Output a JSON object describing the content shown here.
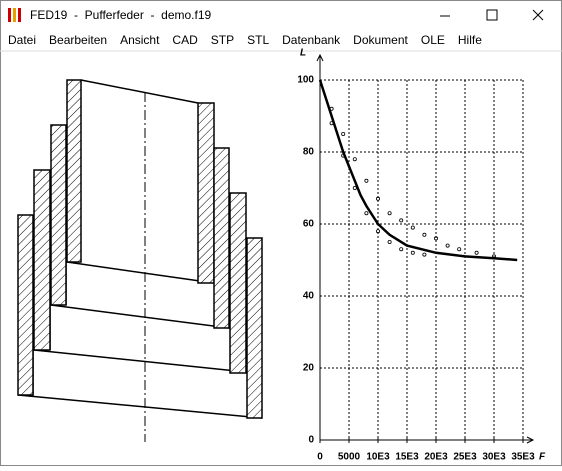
{
  "window": {
    "title": "FED19  -  Pufferfeder  -  demo.f19"
  },
  "menu": [
    "Datei",
    "Bearbeiten",
    "Ansicht",
    "CAD",
    "STP",
    "STL",
    "Datenbank",
    "Dokument",
    "OLE",
    "Hilfe"
  ],
  "chart_data": {
    "type": "line",
    "y_label": "L",
    "x_label": "F",
    "xlim": [
      0,
      35000
    ],
    "ylim": [
      0,
      100
    ],
    "xticks": [
      0,
      5000,
      {
        "value": 10000,
        "label": "10E3"
      },
      {
        "value": 15000,
        "label": "15E3"
      },
      {
        "value": 20000,
        "label": "20E3"
      },
      {
        "value": 25000,
        "label": "25E3"
      },
      {
        "value": 30000,
        "label": "30E3"
      },
      {
        "value": 35000,
        "label": "35E3"
      }
    ],
    "yticks": [
      0,
      20,
      40,
      60,
      80,
      100
    ],
    "grid": true,
    "series": [
      {
        "type": "line",
        "color": "#000000",
        "x": [
          0,
          1000,
          2000,
          3000,
          4000,
          5000,
          6000,
          7000,
          8000,
          10000,
          12000,
          15000,
          20000,
          25000,
          30000,
          34000
        ],
        "values": [
          100,
          95,
          90,
          85,
          80,
          76,
          72,
          68,
          65,
          60,
          57,
          54,
          52,
          51,
          50.5,
          50
        ]
      },
      {
        "type": "scatter",
        "color": "#000000",
        "x": [
          2000,
          4000,
          6000,
          8000,
          10000,
          12000,
          14000,
          16000,
          18000,
          20000,
          22000,
          24000,
          27000,
          30000
        ],
        "values": [
          92,
          85,
          78,
          72,
          67,
          63,
          61,
          59,
          57,
          56,
          54,
          53,
          52,
          51
        ]
      },
      {
        "type": "scatter",
        "color": "#000000",
        "x": [
          2000,
          4000,
          6000,
          8000,
          10000,
          12000,
          14000,
          16000,
          18000
        ],
        "values": [
          88,
          79,
          70,
          63,
          58,
          55,
          53,
          52,
          51.5
        ]
      }
    ]
  }
}
